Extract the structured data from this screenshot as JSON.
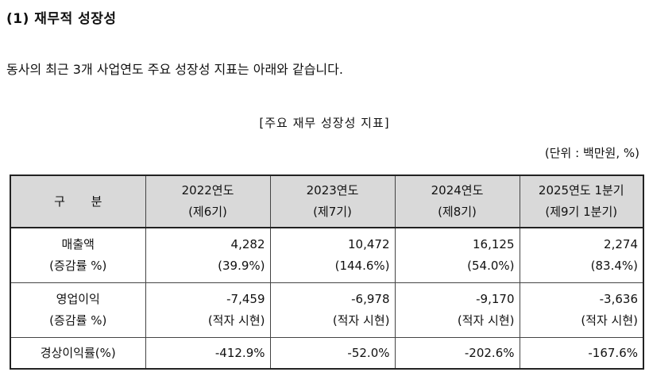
{
  "section": {
    "title": "(1) 재무적 성장성"
  },
  "intro": "동사의 최근 3개 사업연도 주요 성장성 지표는 아래와 같습니다.",
  "table": {
    "caption": "[주요 재무 성장성 지표]",
    "unit": "(단위 : 백만원, %)",
    "header": {
      "label": "구 분",
      "columns": [
        {
          "year": "2022연도",
          "period": "(제6기)"
        },
        {
          "year": "2023연도",
          "period": "(제7기)"
        },
        {
          "year": "2024연도",
          "period": "(제8기)"
        },
        {
          "year": "2025연도 1분기",
          "period": "(제9기 1분기)"
        }
      ]
    },
    "rows": [
      {
        "label": "매출액",
        "sublabel": "(증감률 %)",
        "values": [
          "4,282",
          "10,472",
          "16,125",
          "2,274"
        ],
        "subvalues": [
          "(39.9%)",
          "(144.6%)",
          "(54.0%)",
          "(83.4%)"
        ]
      },
      {
        "label": "영업이익",
        "sublabel": "(증감률 %)",
        "values": [
          "-7,459",
          "-6,978",
          "-9,170",
          "-3,636"
        ],
        "subvalues": [
          "(적자 시현)",
          "(적자 시현)",
          "(적자 시현)",
          "(적자 시현)"
        ]
      },
      {
        "label": "경상이익률(%)",
        "values": [
          "-412.9%",
          "-52.0%",
          "-202.6%",
          "-167.6%"
        ]
      }
    ]
  }
}
